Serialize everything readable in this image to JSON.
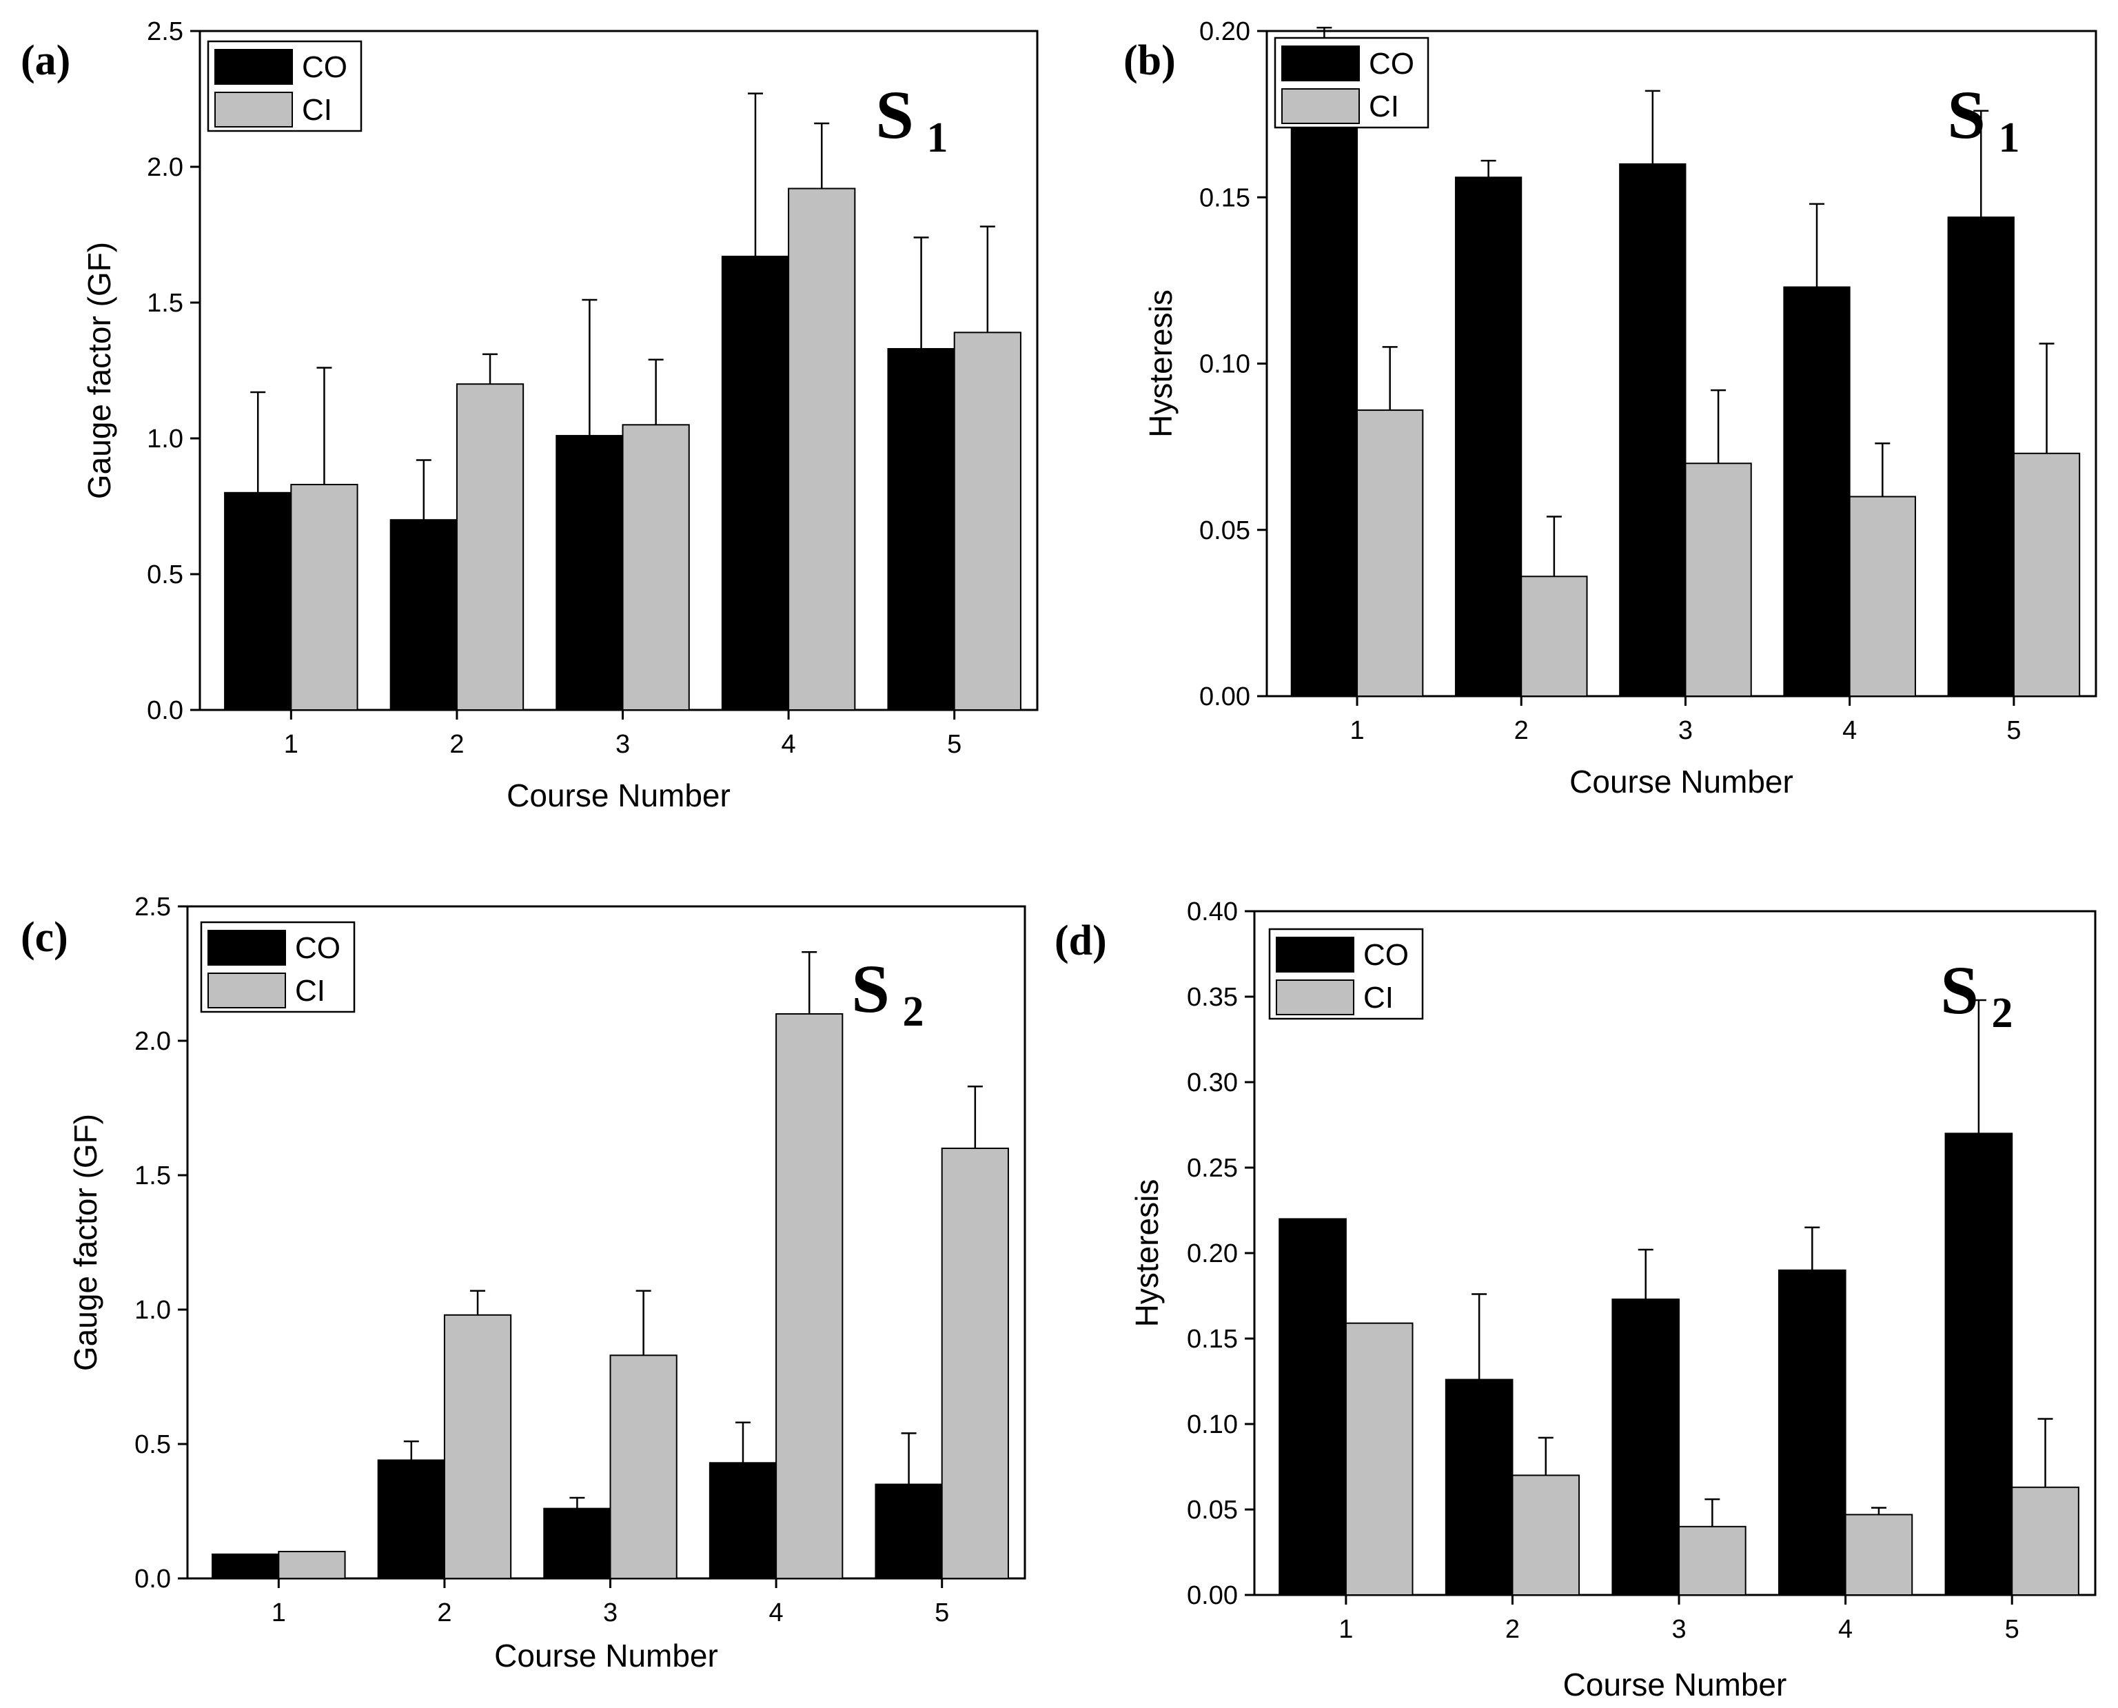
{
  "figure": {
    "chart_data": [
      {
        "type": "bar",
        "panel_label": "(a)",
        "annotation": {
          "main": "S",
          "sub": "1"
        },
        "categories": [
          "1",
          "2",
          "3",
          "4",
          "5"
        ],
        "xlabel": "Course Number",
        "ylabel": "Gauge factor (GF)",
        "ylim": [
          0,
          2.5
        ],
        "yticks": [
          "0.0",
          "0.5",
          "1.0",
          "1.5",
          "2.0",
          "2.5"
        ],
        "series": [
          {
            "name": "CO",
            "color": "#000000",
            "values": [
              0.8,
              0.7,
              1.01,
              1.67,
              1.33
            ],
            "errors": [
              0.37,
              0.22,
              0.5,
              0.6,
              0.41
            ]
          },
          {
            "name": "CI",
            "color": "#c0c0c0",
            "values": [
              0.83,
              1.2,
              1.05,
              1.92,
              1.39
            ],
            "errors": [
              0.43,
              0.11,
              0.24,
              0.24,
              0.39
            ]
          }
        ],
        "legend": "top-left"
      },
      {
        "type": "bar",
        "panel_label": "(b)",
        "annotation": {
          "main": "S",
          "sub": "1"
        },
        "categories": [
          "1",
          "2",
          "3",
          "4",
          "5"
        ],
        "xlabel": "Course Number",
        "ylabel": "Hysteresis",
        "ylim": [
          0,
          0.2
        ],
        "yticks": [
          "0.00",
          "0.05",
          "0.10",
          "0.15",
          "0.20"
        ],
        "series": [
          {
            "name": "CO",
            "color": "#000000",
            "values": [
              0.18,
              0.156,
              0.16,
              0.123,
              0.144
            ],
            "errors": [
              0.021,
              0.005,
              0.022,
              0.025,
              0.032
            ]
          },
          {
            "name": "CI",
            "color": "#c0c0c0",
            "values": [
              0.086,
              0.036,
              0.07,
              0.06,
              0.073
            ],
            "errors": [
              0.019,
              0.018,
              0.022,
              0.016,
              0.033
            ]
          }
        ],
        "legend": "top-left"
      },
      {
        "type": "bar",
        "panel_label": "(c)",
        "annotation": {
          "main": "S",
          "sub": "2"
        },
        "categories": [
          "1",
          "2",
          "3",
          "4",
          "5"
        ],
        "xlabel": "Course Number",
        "ylabel": "Gauge factor (GF)",
        "ylim": [
          0,
          2.5
        ],
        "yticks": [
          "0.0",
          "0.5",
          "1.0",
          "1.5",
          "2.0",
          "2.5"
        ],
        "series": [
          {
            "name": "CO",
            "color": "#000000",
            "values": [
              0.09,
              0.44,
              0.26,
              0.43,
              0.35
            ],
            "errors": [
              0.0,
              0.07,
              0.04,
              0.15,
              0.19
            ]
          },
          {
            "name": "CI",
            "color": "#c0c0c0",
            "values": [
              0.1,
              0.98,
              0.83,
              2.1,
              1.6
            ],
            "errors": [
              0.0,
              0.09,
              0.24,
              0.23,
              0.23
            ]
          }
        ],
        "legend": "top-left"
      },
      {
        "type": "bar",
        "panel_label": "(d)",
        "annotation": {
          "main": "S",
          "sub": "2"
        },
        "categories": [
          "1",
          "2",
          "3",
          "4",
          "5"
        ],
        "xlabel": "Course Number",
        "ylabel": "Hysteresis",
        "ylim": [
          0,
          0.4
        ],
        "yticks": [
          "0.00",
          "0.05",
          "0.10",
          "0.15",
          "0.20",
          "0.25",
          "0.30",
          "0.35",
          "0.40"
        ],
        "series": [
          {
            "name": "CO",
            "color": "#000000",
            "values": [
              0.22,
              0.126,
              0.173,
              0.19,
              0.27
            ],
            "errors": [
              0.0,
              0.05,
              0.029,
              0.025,
              0.078
            ]
          },
          {
            "name": "CI",
            "color": "#c0c0c0",
            "values": [
              0.159,
              0.07,
              0.04,
              0.047,
              0.063
            ],
            "errors": [
              0.0,
              0.022,
              0.016,
              0.004,
              0.04
            ]
          }
        ],
        "legend": "top-left"
      }
    ]
  }
}
